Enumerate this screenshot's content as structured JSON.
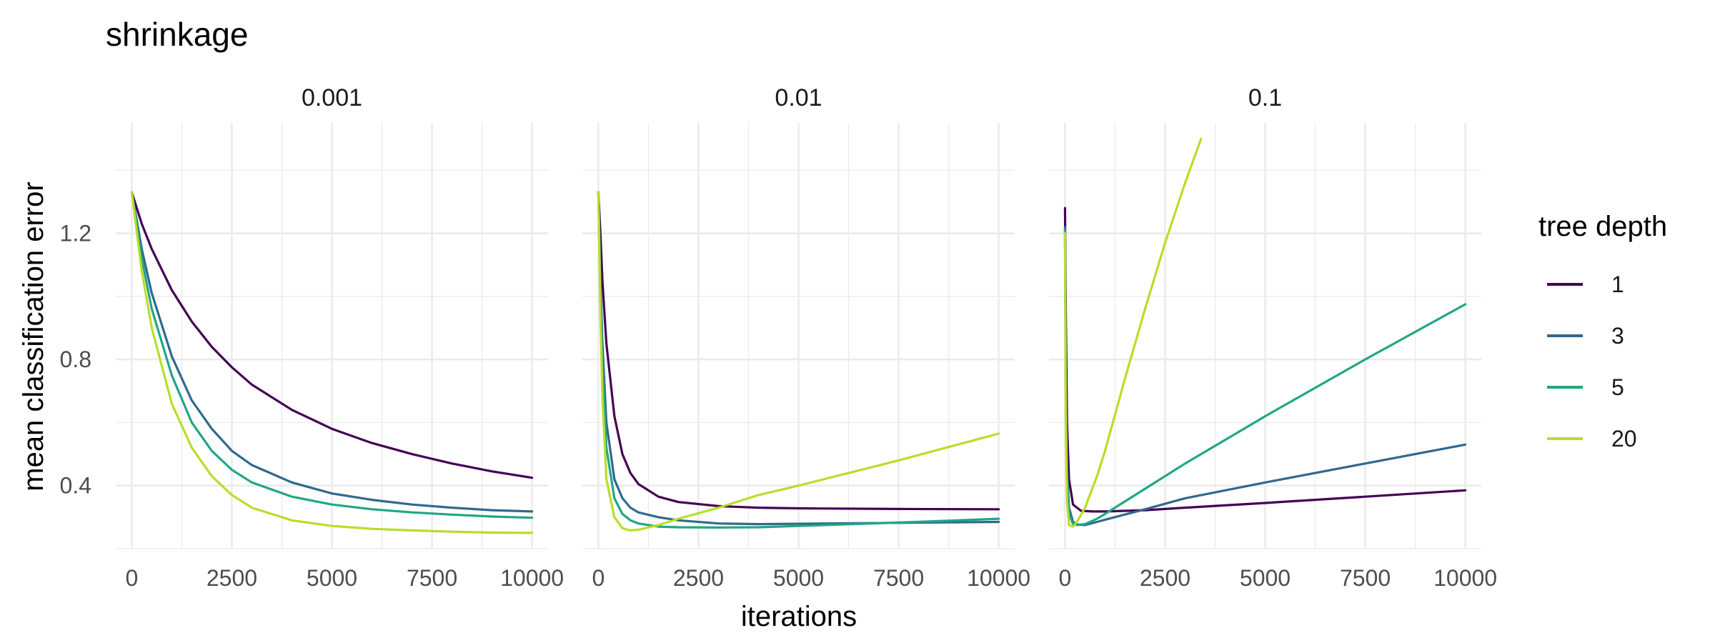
{
  "chart_data": {
    "type": "line",
    "title": "shrinkage",
    "xlabel": "iterations",
    "ylabel": "mean classification error",
    "xlim": [
      0,
      10000
    ],
    "ylim": [
      0.2,
      1.55
    ],
    "x_ticks": [
      0,
      2500,
      5000,
      7500,
      10000
    ],
    "y_ticks": [
      0.4,
      0.8,
      1.2
    ],
    "grid": true,
    "legend": {
      "title": "tree depth",
      "position": "right"
    },
    "series_colors": {
      "1": "#440154",
      "3": "#31688E",
      "5": "#21A685",
      "20": "#B8DE29"
    },
    "panels": [
      {
        "label": "0.001",
        "series": [
          {
            "name": "1",
            "x": [
              0,
              250,
              500,
              1000,
              1500,
              2000,
              2500,
              3000,
              4000,
              5000,
              6000,
              7000,
              8000,
              9000,
              10000
            ],
            "values": [
              1.33,
              1.23,
              1.15,
              1.02,
              0.92,
              0.84,
              0.775,
              0.72,
              0.64,
              0.58,
              0.535,
              0.5,
              0.47,
              0.445,
              0.425
            ]
          },
          {
            "name": "3",
            "x": [
              0,
              250,
              500,
              1000,
              1500,
              2000,
              2500,
              3000,
              4000,
              5000,
              6000,
              7000,
              8000,
              9000,
              10000
            ],
            "values": [
              1.33,
              1.15,
              1.01,
              0.81,
              0.67,
              0.58,
              0.51,
              0.465,
              0.41,
              0.375,
              0.355,
              0.34,
              0.33,
              0.322,
              0.318
            ]
          },
          {
            "name": "5",
            "x": [
              0,
              250,
              500,
              1000,
              1500,
              2000,
              2500,
              3000,
              4000,
              5000,
              6000,
              7000,
              8000,
              9000,
              10000
            ],
            "values": [
              1.33,
              1.12,
              0.96,
              0.75,
              0.6,
              0.51,
              0.45,
              0.41,
              0.365,
              0.34,
              0.325,
              0.315,
              0.308,
              0.302,
              0.298
            ]
          },
          {
            "name": "20",
            "x": [
              0,
              250,
              500,
              1000,
              1500,
              2000,
              2500,
              3000,
              4000,
              5000,
              6000,
              7000,
              8000,
              9000,
              10000
            ],
            "values": [
              1.33,
              1.08,
              0.9,
              0.66,
              0.52,
              0.43,
              0.37,
              0.33,
              0.29,
              0.272,
              0.263,
              0.258,
              0.254,
              0.251,
              0.25
            ]
          }
        ]
      },
      {
        "label": "0.01",
        "series": [
          {
            "name": "1",
            "x": [
              0,
              50,
              100,
              200,
              400,
              600,
              800,
              1000,
              1500,
              2000,
              3000,
              4000,
              5000,
              7500,
              10000
            ],
            "values": [
              1.33,
              1.2,
              1.05,
              0.85,
              0.62,
              0.5,
              0.44,
              0.405,
              0.365,
              0.348,
              0.335,
              0.33,
              0.328,
              0.326,
              0.325
            ]
          },
          {
            "name": "3",
            "x": [
              0,
              50,
              100,
              200,
              400,
              600,
              800,
              1000,
              1500,
              2000,
              3000,
              4000,
              5000,
              7500,
              10000
            ],
            "values": [
              1.33,
              1.05,
              0.85,
              0.6,
              0.42,
              0.36,
              0.33,
              0.315,
              0.3,
              0.29,
              0.28,
              0.278,
              0.279,
              0.282,
              0.285
            ]
          },
          {
            "name": "5",
            "x": [
              0,
              50,
              100,
              200,
              400,
              600,
              800,
              1000,
              1500,
              2000,
              3000,
              4000,
              5000,
              7500,
              10000
            ],
            "values": [
              1.33,
              1.0,
              0.78,
              0.52,
              0.36,
              0.31,
              0.29,
              0.28,
              0.27,
              0.268,
              0.267,
              0.268,
              0.272,
              0.283,
              0.295
            ]
          },
          {
            "name": "20",
            "x": [
              0,
              50,
              100,
              200,
              400,
              600,
              800,
              1000,
              1500,
              2000,
              3000,
              4000,
              5000,
              7500,
              10000
            ],
            "values": [
              1.33,
              0.95,
              0.68,
              0.42,
              0.3,
              0.265,
              0.258,
              0.26,
              0.275,
              0.295,
              0.33,
              0.37,
              0.4,
              0.48,
              0.565
            ]
          }
        ]
      },
      {
        "label": "0.1",
        "series": [
          {
            "name": "1",
            "x": [
              0,
              20,
              50,
              100,
              200,
              400,
              700,
              1000,
              2000,
              3000,
              5000,
              7500,
              10000
            ],
            "values": [
              1.28,
              0.95,
              0.6,
              0.42,
              0.34,
              0.32,
              0.318,
              0.318,
              0.322,
              0.33,
              0.345,
              0.365,
              0.385
            ]
          },
          {
            "name": "3",
            "x": [
              0,
              20,
              50,
              100,
              200,
              300,
              500,
              800,
              1000,
              2000,
              3000,
              5000,
              7500,
              10000
            ],
            "values": [
              1.22,
              0.75,
              0.45,
              0.33,
              0.285,
              0.277,
              0.275,
              0.285,
              0.292,
              0.325,
              0.36,
              0.41,
              0.47,
              0.53
            ]
          },
          {
            "name": "5",
            "x": [
              0,
              20,
              50,
              100,
              200,
              300,
              500,
              800,
              1000,
              2000,
              3000,
              5000,
              7500,
              10000
            ],
            "values": [
              1.21,
              0.7,
              0.42,
              0.31,
              0.278,
              0.275,
              0.278,
              0.295,
              0.31,
              0.39,
              0.47,
              0.62,
              0.8,
              0.975
            ]
          },
          {
            "name": "20",
            "x": [
              0,
              20,
              50,
              100,
              200,
              300,
              500,
              800,
              1000,
              1500,
              2000,
              2500,
              3000,
              3400
            ],
            "values": [
              1.2,
              0.6,
              0.35,
              0.275,
              0.27,
              0.285,
              0.33,
              0.43,
              0.51,
              0.74,
              0.96,
              1.17,
              1.36,
              1.5
            ]
          }
        ]
      }
    ]
  }
}
